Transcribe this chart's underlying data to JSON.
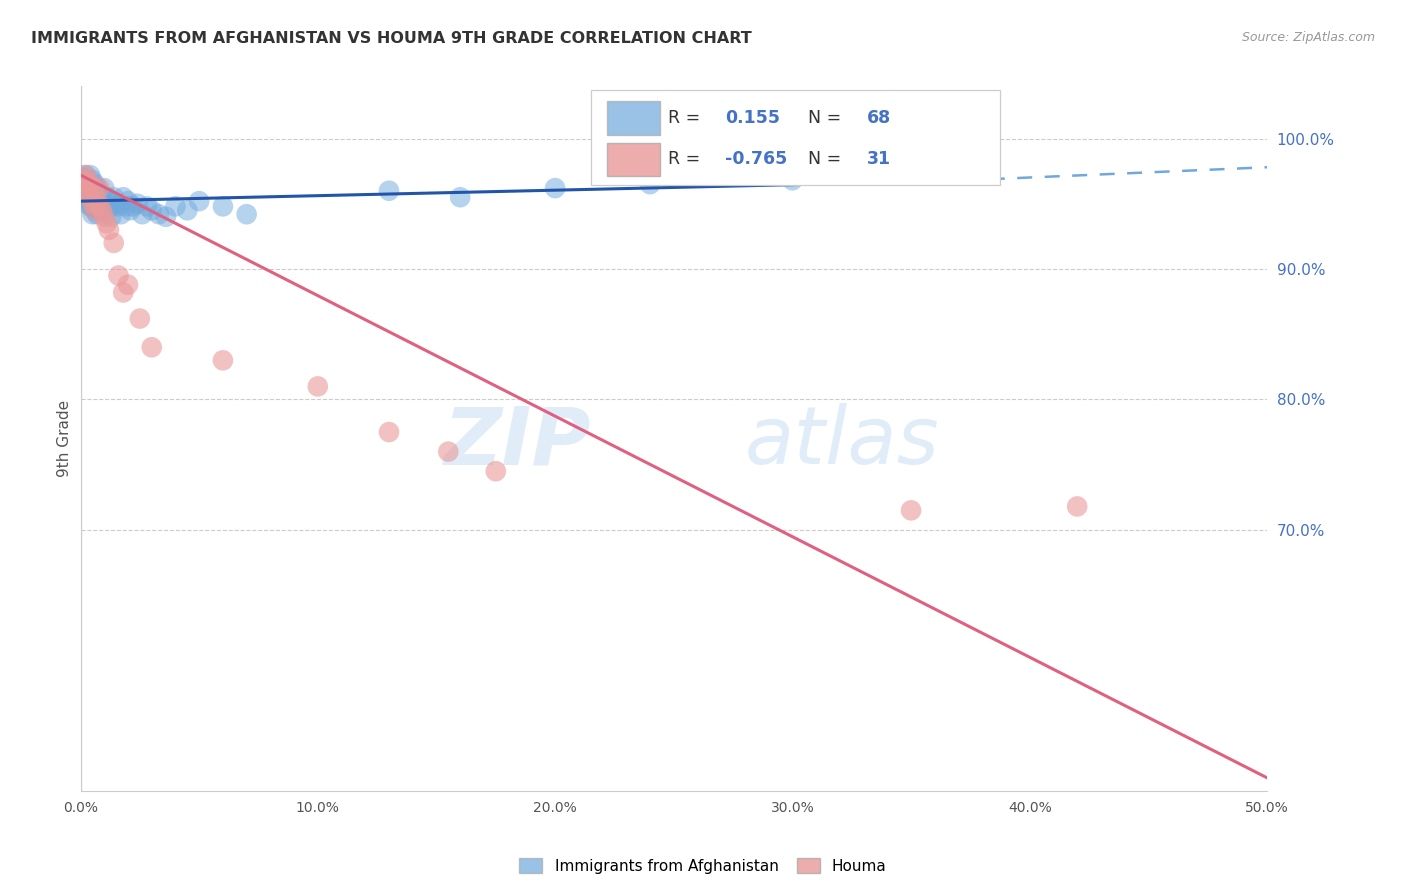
{
  "title": "IMMIGRANTS FROM AFGHANISTAN VS HOUMA 9TH GRADE CORRELATION CHART",
  "source": "Source: ZipAtlas.com",
  "ylabel": "9th Grade",
  "xlabel_ticks": [
    "0.0%",
    "10.0%",
    "20.0%",
    "30.0%",
    "40.0%",
    "50.0%"
  ],
  "xlabel_vals": [
    0.0,
    0.1,
    0.2,
    0.3,
    0.4,
    0.5
  ],
  "ylabel_ticks": [
    "100.0%",
    "90.0%",
    "80.0%",
    "70.0%"
  ],
  "ylabel_vals": [
    1.0,
    0.9,
    0.8,
    0.7
  ],
  "xmin": 0.0,
  "xmax": 0.5,
  "ymin": 0.5,
  "ymax": 1.04,
  "R_blue": 0.155,
  "N_blue": 68,
  "R_pink": -0.765,
  "N_pink": 31,
  "blue_color": "#6fa8dc",
  "pink_color": "#ea9999",
  "blue_line_color": "#2255aa",
  "pink_line_color": "#e06080",
  "dashed_line_color": "#6fa8dc",
  "watermark_zip": "ZIP",
  "watermark_atlas": "atlas",
  "legend_label_blue": "Immigrants from Afghanistan",
  "legend_label_pink": "Houma",
  "blue_scatter_x": [
    0.001,
    0.001,
    0.002,
    0.002,
    0.002,
    0.002,
    0.003,
    0.003,
    0.003,
    0.003,
    0.004,
    0.004,
    0.004,
    0.004,
    0.004,
    0.005,
    0.005,
    0.005,
    0.005,
    0.005,
    0.006,
    0.006,
    0.006,
    0.006,
    0.007,
    0.007,
    0.007,
    0.007,
    0.008,
    0.008,
    0.008,
    0.009,
    0.009,
    0.01,
    0.01,
    0.011,
    0.011,
    0.012,
    0.013,
    0.013,
    0.014,
    0.015,
    0.016,
    0.017,
    0.018,
    0.019,
    0.02,
    0.021,
    0.022,
    0.024,
    0.026,
    0.028,
    0.03,
    0.033,
    0.036,
    0.04,
    0.045,
    0.05,
    0.06,
    0.07,
    0.13,
    0.16,
    0.2,
    0.24,
    0.26,
    0.3,
    0.34,
    0.38
  ],
  "blue_scatter_y": [
    0.97,
    0.965,
    0.972,
    0.968,
    0.96,
    0.955,
    0.968,
    0.962,
    0.958,
    0.95,
    0.972,
    0.965,
    0.958,
    0.952,
    0.948,
    0.968,
    0.962,
    0.955,
    0.948,
    0.942,
    0.965,
    0.958,
    0.952,
    0.945,
    0.962,
    0.955,
    0.948,
    0.942,
    0.958,
    0.952,
    0.945,
    0.955,
    0.948,
    0.962,
    0.95,
    0.955,
    0.945,
    0.952,
    0.948,
    0.94,
    0.955,
    0.95,
    0.948,
    0.942,
    0.955,
    0.948,
    0.952,
    0.945,
    0.948,
    0.95,
    0.942,
    0.948,
    0.945,
    0.942,
    0.94,
    0.948,
    0.945,
    0.952,
    0.948,
    0.942,
    0.96,
    0.955,
    0.962,
    0.965,
    0.978,
    0.968,
    0.982,
    0.975
  ],
  "pink_scatter_x": [
    0.001,
    0.002,
    0.002,
    0.003,
    0.003,
    0.004,
    0.004,
    0.005,
    0.005,
    0.006,
    0.006,
    0.007,
    0.008,
    0.008,
    0.009,
    0.01,
    0.011,
    0.012,
    0.014,
    0.016,
    0.018,
    0.02,
    0.025,
    0.03,
    0.06,
    0.1,
    0.13,
    0.155,
    0.175,
    0.35,
    0.42
  ],
  "pink_scatter_y": [
    0.968,
    0.972,
    0.962,
    0.968,
    0.958,
    0.965,
    0.955,
    0.962,
    0.95,
    0.958,
    0.945,
    0.952,
    0.962,
    0.948,
    0.945,
    0.94,
    0.935,
    0.93,
    0.92,
    0.895,
    0.882,
    0.888,
    0.862,
    0.84,
    0.83,
    0.81,
    0.775,
    0.76,
    0.745,
    0.715,
    0.718
  ]
}
